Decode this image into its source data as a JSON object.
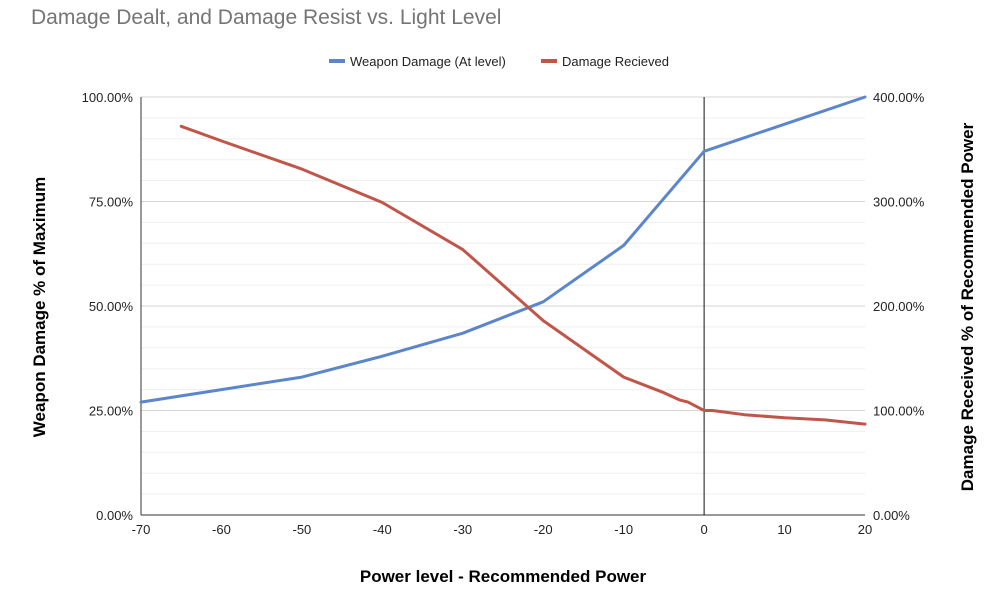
{
  "chart_data": {
    "type": "line",
    "title": "Damage Dealt, and Damage Resist vs. Light Level",
    "xlabel": "Power level - Recommended Power",
    "ylabel": "Weapon Damage % of Maximum",
    "y2label": "Damage Received % of Recommended Power",
    "xlim": [
      -70,
      20
    ],
    "ylim": [
      0,
      100
    ],
    "y2lim": [
      0,
      400
    ],
    "x_ticks": [
      "-70",
      "-60",
      "-50",
      "-40",
      "-30",
      "-20",
      "-10",
      "0",
      "10",
      "20"
    ],
    "y_ticks": [
      "0.00%",
      "25.00%",
      "50.00%",
      "75.00%",
      "100.00%"
    ],
    "y2_ticks": [
      "0.00%",
      "100.00%",
      "200.00%",
      "300.00%",
      "400.00%"
    ],
    "grid": true,
    "reference_line_x": 0,
    "legend_position": "top",
    "series": [
      {
        "name": "Weapon Damage (At level)",
        "color": "#5b86cc",
        "axis": "left",
        "x": [
          -70,
          -60,
          -50,
          -40,
          -30,
          -20,
          -10,
          0,
          10,
          20
        ],
        "values": [
          27,
          30,
          33,
          38,
          43.5,
          51,
          64.5,
          87,
          93.5,
          100
        ]
      },
      {
        "name": "Damage Recieved",
        "color": "#c0564a",
        "axis": "right",
        "x": [
          -65,
          -60,
          -50,
          -40,
          -30,
          -20,
          -10,
          -5,
          -3,
          -2,
          -1,
          0,
          1,
          2,
          5,
          10,
          15,
          20
        ],
        "values": [
          372,
          358,
          331,
          299,
          254,
          186,
          132,
          117,
          110,
          108,
          104,
          100,
          100,
          99,
          96,
          93,
          91,
          87
        ]
      }
    ]
  }
}
